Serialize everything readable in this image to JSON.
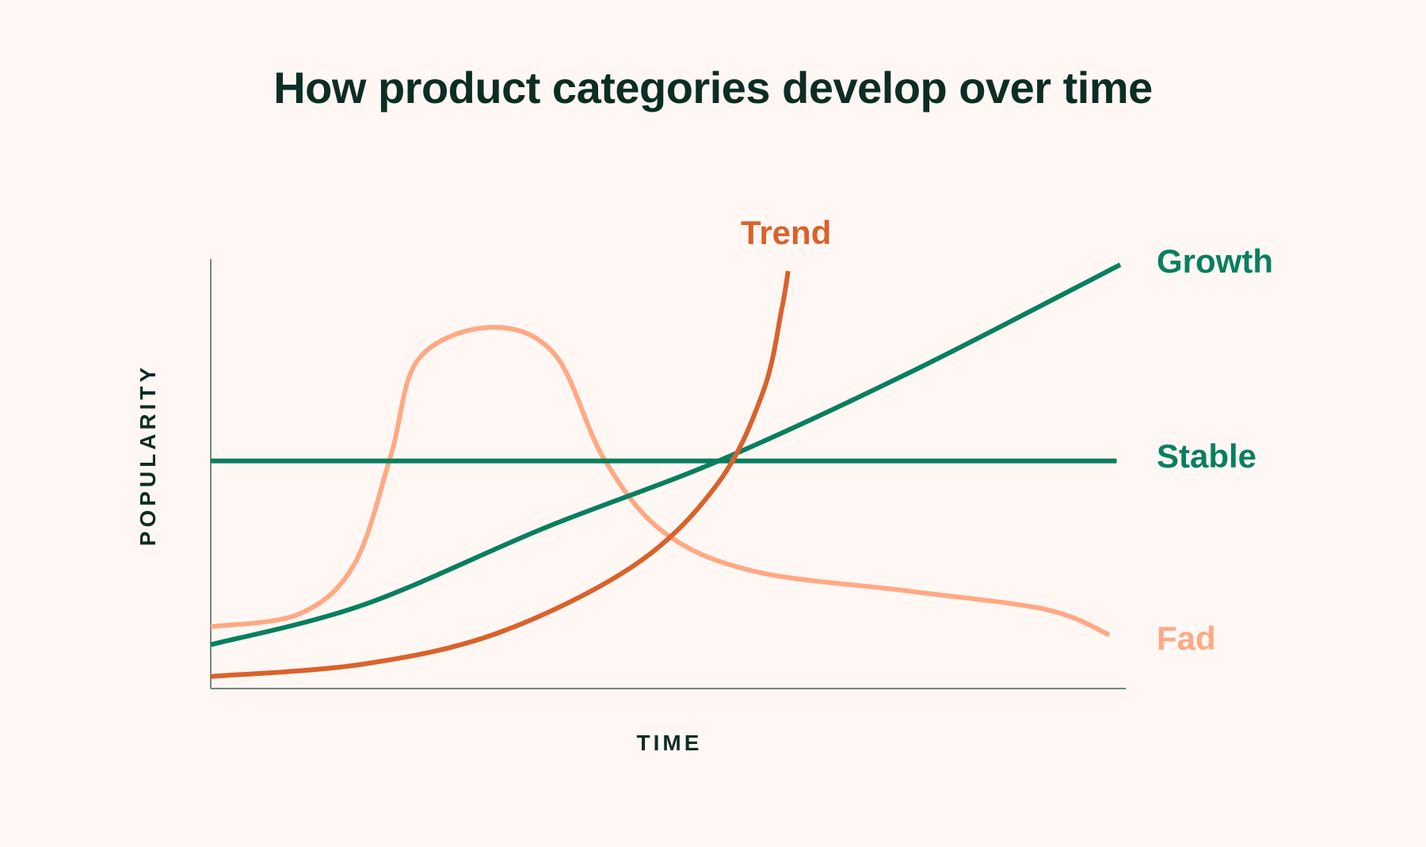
{
  "chart_data": {
    "type": "line",
    "title": "How product categories develop over time",
    "xlabel": "TIME",
    "ylabel": "POPULARITY",
    "xlim": [
      0,
      100
    ],
    "ylim": [
      0,
      100
    ],
    "grid": false,
    "legend": "direct labels at line ends (right)",
    "series": [
      {
        "name": "Trend",
        "color": "#d9622b",
        "x": [
          0,
          16.7,
          31.6,
          46.5,
          55.5,
          60.4,
          62.4,
          63.1
        ],
        "y": [
          2.8,
          5.7,
          13.1,
          29,
          48,
          69.3,
          88.3,
          97.2
        ]
      },
      {
        "name": "Growth",
        "color": "#087f5e",
        "x": [
          0,
          16.7,
          36.6,
          55.5,
          76.3,
          99.4
        ],
        "y": [
          10.2,
          19.5,
          37.5,
          53,
          73.5,
          98.7
        ]
      },
      {
        "name": "Stable",
        "color": "#087f5e",
        "x": [
          0,
          99
        ],
        "y": [
          53,
          53
        ]
      },
      {
        "name": "Fad",
        "color": "#ffa984",
        "x": [
          0,
          9.7,
          15.7,
          19.7,
          22.7,
          30.6,
          37.6,
          43,
          49.5,
          59.4,
          76.3,
          91.3,
          98.2
        ],
        "y": [
          14.4,
          17.4,
          29,
          54.4,
          76.7,
          84.1,
          77.8,
          53.4,
          36.4,
          27.3,
          22.7,
          18.4,
          12.5
        ]
      }
    ]
  }
}
